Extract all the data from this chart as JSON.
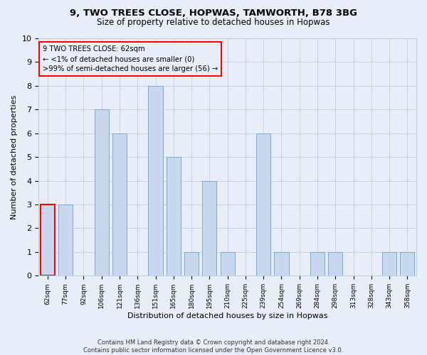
{
  "title1": "9, TWO TREES CLOSE, HOPWAS, TAMWORTH, B78 3BG",
  "title2": "Size of property relative to detached houses in Hopwas",
  "xlabel": "Distribution of detached houses by size in Hopwas",
  "ylabel": "Number of detached properties",
  "categories": [
    "62sqm",
    "77sqm",
    "92sqm",
    "106sqm",
    "121sqm",
    "136sqm",
    "151sqm",
    "165sqm",
    "180sqm",
    "195sqm",
    "210sqm",
    "225sqm",
    "239sqm",
    "254sqm",
    "269sqm",
    "284sqm",
    "298sqm",
    "313sqm",
    "328sqm",
    "343sqm",
    "358sqm"
  ],
  "values": [
    3,
    3,
    0,
    7,
    6,
    0,
    8,
    5,
    1,
    4,
    1,
    0,
    6,
    1,
    0,
    1,
    1,
    0,
    0,
    1,
    1
  ],
  "bar_color": "#c8d8ee",
  "bar_edge_color": "#7aaad0",
  "highlight_index": 0,
  "highlight_edge_color": "red",
  "annotation_line1": "9 TWO TREES CLOSE: 62sqm",
  "annotation_line2": "← <1% of detached houses are smaller (0)",
  "annotation_line3": ">99% of semi-detached houses are larger (56) →",
  "ylim": [
    0,
    10
  ],
  "yticks": [
    0,
    1,
    2,
    3,
    4,
    5,
    6,
    7,
    8,
    9,
    10
  ],
  "footnote1": "Contains HM Land Registry data © Crown copyright and database right 2024.",
  "footnote2": "Contains public sector information licensed under the Open Government Licence v3.0.",
  "background_color": "#e8eef8",
  "grid_color": "#c0cce0",
  "title_fontsize": 9.5,
  "subtitle_fontsize": 8.5
}
